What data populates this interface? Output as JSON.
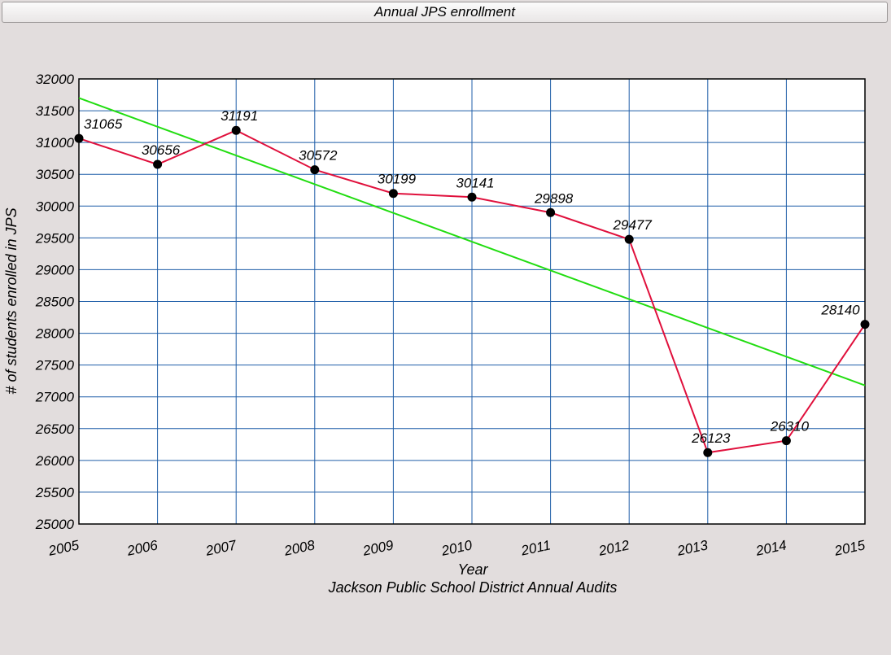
{
  "window": {
    "title": "Annual JPS enrollment"
  },
  "chart_data": {
    "type": "line",
    "title": "Annual JPS enrollment",
    "xlabel": "Year",
    "xlabel2": "Jackson Public School District Annual Audits",
    "ylabel": "# of students enrolled in JPS",
    "x": [
      2005,
      2006,
      2007,
      2008,
      2009,
      2010,
      2011,
      2012,
      2013,
      2014,
      2015
    ],
    "xticks": [
      "2005",
      "2006",
      "2007",
      "2008",
      "2009",
      "2010",
      "2011",
      "2012",
      "2013",
      "2014",
      "2015"
    ],
    "yticks": [
      "25000",
      "25500",
      "26000",
      "26500",
      "27000",
      "27500",
      "28000",
      "28500",
      "29000",
      "29500",
      "30000",
      "30500",
      "31000",
      "31500",
      "32000"
    ],
    "xlim": [
      2005,
      2015
    ],
    "ylim": [
      25000,
      32000
    ],
    "grid": true,
    "series": [
      {
        "values": [
          31065,
          30656,
          31191,
          30572,
          30199,
          30141,
          29898,
          29477,
          26123,
          26310,
          28140
        ],
        "data_labels": [
          "31065",
          "30656",
          "31191",
          "30572",
          "30199",
          "30141",
          "29898",
          "29477",
          "26123",
          "26310",
          "28140"
        ],
        "color": "#e0103c",
        "marker": "circle"
      },
      {
        "values": [
          31700,
          27180
        ],
        "x": [
          2005,
          2015
        ],
        "color": "#22dd11"
      }
    ],
    "colors": {
      "grid": "#1f5ea8",
      "plot_background": "#ffffff",
      "page_background": "#e2dddd",
      "marker": "#000000"
    }
  }
}
